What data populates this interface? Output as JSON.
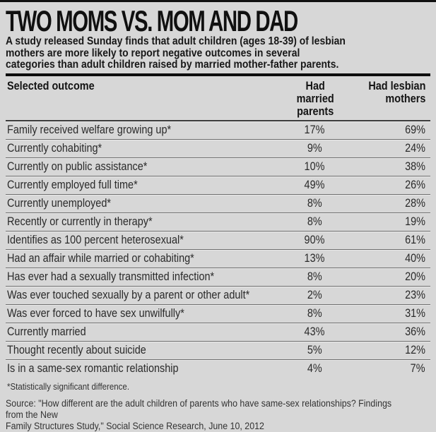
{
  "colors": {
    "background": "#d7d7d7",
    "text": "#1b1b1b",
    "rule": "#0e0e0e",
    "row_divider": "#6e6e6e"
  },
  "chart_data": {
    "type": "table",
    "title": "TWO MOMS VS. MOM AND DAD",
    "subtitle": "A study released Sunday finds that adult children (ages 18-39) of lesbian\nmothers are more likely to report negative outcomes in several\ncategories than adult children raised by married mother-father parents.",
    "columns": [
      "Selected outcome",
      "Had married parents",
      "Had lesbian mothers"
    ],
    "columns_display": [
      "Selected outcome",
      "Had married\nparents",
      "Had lesbian\nmothers"
    ],
    "categories": [
      "Family received welfare growing up*",
      "Currently cohabiting*",
      "Currently on public assistance*",
      "Currently employed full time*",
      "Currently unemployed*",
      "Recently or currently in therapy*",
      "Identifies as 100 percent heterosexual*",
      "Had an affair while married or cohabiting*",
      "Has ever had a sexually transmitted infection*",
      "Was ever touched sexually by a parent or other adult*",
      "Was ever forced to have sex unwilfully*",
      "Currently married",
      "Thought recently about suicide",
      "Is in a same-sex romantic relationship"
    ],
    "series": [
      {
        "name": "Had married parents",
        "values": [
          17,
          9,
          10,
          49,
          8,
          8,
          90,
          13,
          8,
          2,
          8,
          43,
          5,
          4
        ]
      },
      {
        "name": "Had lesbian mothers",
        "values": [
          69,
          24,
          38,
          26,
          28,
          19,
          61,
          40,
          20,
          23,
          31,
          36,
          12,
          7
        ]
      }
    ],
    "value_suffix": "%",
    "footnote": "*Statistically significant difference.",
    "source": "Source: \"How different are the adult children of parents who have same-sex relationships? Findings from the New\nFamily Structures Study,\" Social Science Research, June 10, 2012"
  }
}
